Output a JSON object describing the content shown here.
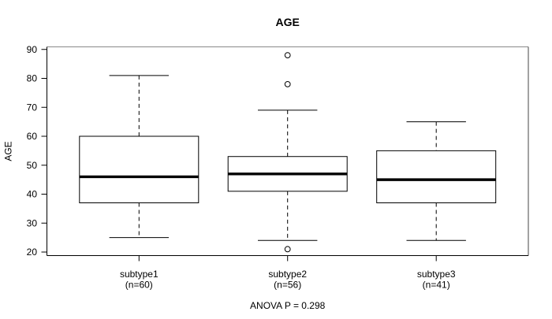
{
  "chart_data": {
    "type": "boxplot",
    "title": "AGE",
    "ylabel": "AGE",
    "xlabel": "",
    "annotation": "ANOVA P = 0.298",
    "ylim": [
      20,
      90
    ],
    "yticks": [
      20,
      30,
      40,
      50,
      60,
      70,
      80,
      90
    ],
    "grid": false,
    "groups": [
      {
        "label": "subtype1",
        "n": 60,
        "n_label": "(n=60)",
        "whisker_low": 25,
        "q1": 37,
        "median": 46,
        "q3": 60,
        "whisker_high": 81,
        "outliers": []
      },
      {
        "label": "subtype2",
        "n": 56,
        "n_label": "(n=56)",
        "whisker_low": 24,
        "q1": 41,
        "median": 47,
        "q3": 53,
        "whisker_high": 69,
        "outliers": [
          88,
          78,
          21
        ]
      },
      {
        "label": "subtype3",
        "n": 41,
        "n_label": "(n=41)",
        "whisker_low": 24,
        "q1": 37,
        "median": 45,
        "q3": 55,
        "whisker_high": 65,
        "outliers": []
      }
    ]
  },
  "colors": {
    "line": "#000000",
    "box_fill": "#ffffff",
    "median": "#000000",
    "border_top": "#888888",
    "border_right": "#444444",
    "background": "#ffffff"
  }
}
